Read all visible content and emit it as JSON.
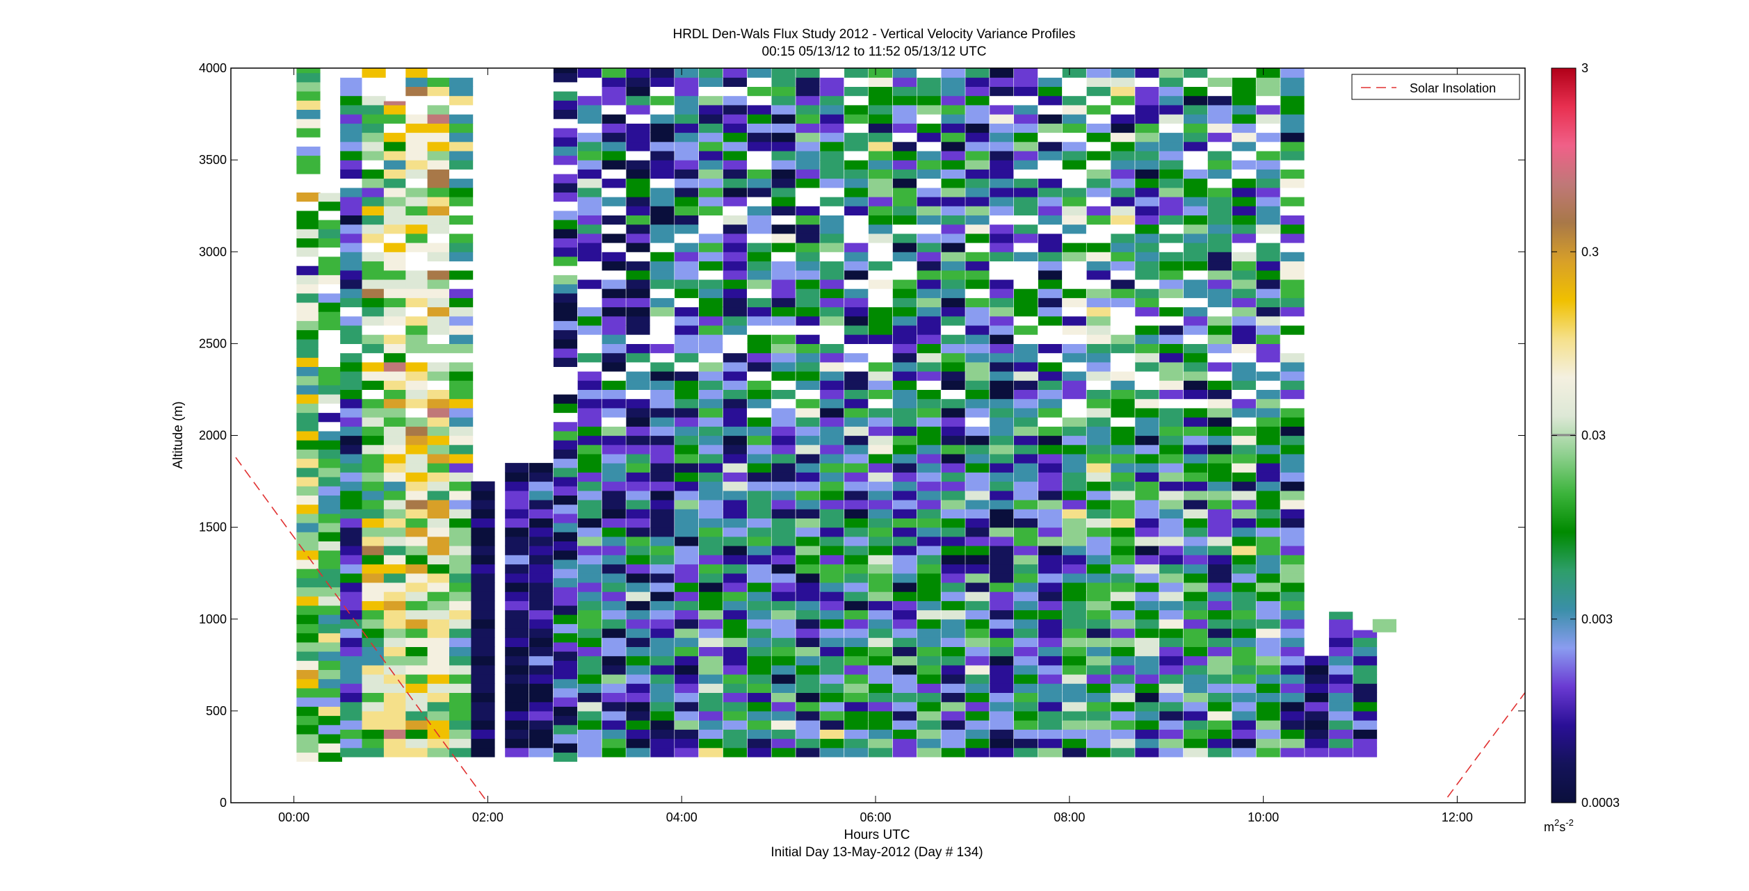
{
  "chart_data": {
    "type": "heatmap",
    "title": "HRDL Den-Wals Flux Study 2012 - Vertical Velocity Variance Profiles",
    "subtitle": "00:15 05/13/12 to 11:52 05/13/12  UTC",
    "xlabel": "Hours UTC",
    "xlabel2": "Initial Day 13-May-2012 (Day # 134)",
    "ylabel": "Altitude (m)",
    "xlim": [
      -0.65,
      12.7
    ],
    "ylim": [
      0,
      4000
    ],
    "x_ticks": [
      {
        "value": 0,
        "label": "00:00"
      },
      {
        "value": 2,
        "label": "02:00"
      },
      {
        "value": 4,
        "label": "04:00"
      },
      {
        "value": 6,
        "label": "06:00"
      },
      {
        "value": 8,
        "label": "08:00"
      },
      {
        "value": 10,
        "label": "10:00"
      },
      {
        "value": 12,
        "label": "12:00"
      }
    ],
    "y_ticks": [
      {
        "value": 0,
        "label": "0"
      },
      {
        "value": 500,
        "label": "500"
      },
      {
        "value": 1000,
        "label": "1000"
      },
      {
        "value": 1500,
        "label": "1500"
      },
      {
        "value": 2000,
        "label": "2000"
      },
      {
        "value": 2500,
        "label": "2500"
      },
      {
        "value": 3000,
        "label": "3000"
      },
      {
        "value": 3500,
        "label": "3500"
      },
      {
        "value": 4000,
        "label": "4000"
      }
    ],
    "colorbar": {
      "scale": "log",
      "min": 0.0003,
      "max": 3,
      "ticks": [
        {
          "value": 0.0003,
          "label": "0.0003"
        },
        {
          "value": 0.003,
          "label": "0.003"
        },
        {
          "value": 0.03,
          "label": "0.03"
        },
        {
          "value": 0.3,
          "label": "0.3"
        },
        {
          "value": 3,
          "label": "3"
        }
      ],
      "units_base": "m",
      "units_sup1": "2",
      "units_mid": "s",
      "units_sup2": "-2",
      "colors": [
        "#0a0f3c",
        "#14135a",
        "#2a0f96",
        "#6a3ad2",
        "#8a9cf0",
        "#3a8fa8",
        "#2e9e6a",
        "#008a00",
        "#3cb43c",
        "#8fd08f",
        "#dde8d6",
        "#f4f0e0",
        "#f5e08a",
        "#f0c000",
        "#d8a028",
        "#a87848",
        "#c07878",
        "#f06088",
        "#e83050",
        "#b00018"
      ]
    },
    "legend": {
      "label": "Solar Insolation",
      "placement": "top-right"
    },
    "columns": [
      {
        "x": 0.15,
        "top": 4000,
        "bottom": 225,
        "mean": -1.7,
        "spread": 1.0
      },
      {
        "x": 0.375,
        "top": 3320,
        "bottom": 225,
        "mean": -1.9,
        "spread": 0.9
      },
      {
        "x": 0.6,
        "top": 4000,
        "bottom": 250,
        "mean": -2.7,
        "spread": 0.9
      },
      {
        "x": 0.825,
        "top": 4000,
        "bottom": 250,
        "mean": -1.6,
        "spread": 1.0
      },
      {
        "x": 1.05,
        "top": 3820,
        "bottom": 250,
        "mean": -1.3,
        "spread": 0.9
      },
      {
        "x": 1.275,
        "top": 4000,
        "bottom": 250,
        "mean": -1.3,
        "spread": 0.9
      },
      {
        "x": 1.5,
        "top": 4000,
        "bottom": 250,
        "mean": -1.2,
        "spread": 0.9
      },
      {
        "x": 1.725,
        "top": 4000,
        "bottom": 250,
        "mean": -1.8,
        "spread": 1.0
      },
      {
        "x": 1.95,
        "top": 1750,
        "bottom": 250,
        "mean": -3.3,
        "spread": 0.3
      },
      {
        "x": 2.3,
        "top": 1850,
        "bottom": 250,
        "mean": -3.2,
        "spread": 0.5
      },
      {
        "x": 2.55,
        "top": 1850,
        "bottom": 250,
        "mean": -3.2,
        "spread": 0.5
      },
      {
        "x": 2.8,
        "top": 4000,
        "bottom": 225,
        "mean": -2.8,
        "spread": 1.0
      },
      {
        "x": 3.05,
        "top": 4000,
        "bottom": 250,
        "mean": -2.5,
        "spread": 0.9
      },
      {
        "x": 3.3,
        "top": 4000,
        "bottom": 250,
        "mean": -2.8,
        "spread": 1.0
      },
      {
        "x": 3.55,
        "top": 4000,
        "bottom": 250,
        "mean": -2.7,
        "spread": 1.0
      },
      {
        "x": 3.8,
        "top": 4000,
        "bottom": 250,
        "mean": -2.8,
        "spread": 1.0
      },
      {
        "x": 4.05,
        "top": 4000,
        "bottom": 250,
        "mean": -2.6,
        "spread": 1.0
      },
      {
        "x": 4.3,
        "top": 4000,
        "bottom": 250,
        "mean": -2.4,
        "spread": 1.0
      },
      {
        "x": 4.55,
        "top": 4000,
        "bottom": 250,
        "mean": -2.6,
        "spread": 1.0
      },
      {
        "x": 4.8,
        "top": 4000,
        "bottom": 250,
        "mean": -2.5,
        "spread": 1.0
      },
      {
        "x": 5.05,
        "top": 4000,
        "bottom": 250,
        "mean": -2.5,
        "spread": 1.0
      },
      {
        "x": 5.3,
        "top": 4000,
        "bottom": 250,
        "mean": -2.4,
        "spread": 1.0
      },
      {
        "x": 5.55,
        "top": 4000,
        "bottom": 250,
        "mean": -2.4,
        "spread": 1.0
      },
      {
        "x": 5.8,
        "top": 4000,
        "bottom": 250,
        "mean": -2.4,
        "spread": 1.0
      },
      {
        "x": 6.05,
        "top": 4000,
        "bottom": 250,
        "mean": -2.2,
        "spread": 1.0
      },
      {
        "x": 6.3,
        "top": 4000,
        "bottom": 250,
        "mean": -2.5,
        "spread": 1.0
      },
      {
        "x": 6.55,
        "top": 4000,
        "bottom": 250,
        "mean": -2.2,
        "spread": 1.0
      },
      {
        "x": 6.8,
        "top": 4000,
        "bottom": 250,
        "mean": -2.5,
        "spread": 1.0
      },
      {
        "x": 7.05,
        "top": 4000,
        "bottom": 250,
        "mean": -2.4,
        "spread": 1.0
      },
      {
        "x": 7.3,
        "top": 4000,
        "bottom": 250,
        "mean": -2.6,
        "spread": 1.0
      },
      {
        "x": 7.55,
        "top": 4000,
        "bottom": 250,
        "mean": -2.4,
        "spread": 1.0
      },
      {
        "x": 7.8,
        "top": 4000,
        "bottom": 250,
        "mean": -2.6,
        "spread": 1.0
      },
      {
        "x": 8.05,
        "top": 4000,
        "bottom": 250,
        "mean": -2.1,
        "spread": 1.0
      },
      {
        "x": 8.3,
        "top": 4000,
        "bottom": 250,
        "mean": -2.1,
        "spread": 1.0
      },
      {
        "x": 8.55,
        "top": 4000,
        "bottom": 250,
        "mean": -2.1,
        "spread": 1.0
      },
      {
        "x": 8.8,
        "top": 4000,
        "bottom": 250,
        "mean": -2.4,
        "spread": 1.0
      },
      {
        "x": 9.05,
        "top": 4000,
        "bottom": 250,
        "mean": -2.3,
        "spread": 1.0
      },
      {
        "x": 9.3,
        "top": 4000,
        "bottom": 250,
        "mean": -2.3,
        "spread": 1.0
      },
      {
        "x": 9.55,
        "top": 4000,
        "bottom": 250,
        "mean": -2.4,
        "spread": 1.0
      },
      {
        "x": 9.8,
        "top": 4000,
        "bottom": 250,
        "mean": -2.2,
        "spread": 1.0
      },
      {
        "x": 10.05,
        "top": 4000,
        "bottom": 250,
        "mean": -2.2,
        "spread": 1.0
      },
      {
        "x": 10.3,
        "top": 4000,
        "bottom": 250,
        "mean": -2.4,
        "spread": 1.0
      },
      {
        "x": 10.55,
        "top": 800,
        "bottom": 250,
        "mean": -3.2,
        "spread": 0.5
      },
      {
        "x": 10.8,
        "top": 1040,
        "bottom": 250,
        "mean": -2.6,
        "spread": 0.8
      },
      {
        "x": 11.05,
        "top": 940,
        "bottom": 250,
        "mean": -2.6,
        "spread": 0.8
      },
      {
        "x": 11.25,
        "top": 1000,
        "bottom": 930,
        "mean": -1.8,
        "spread": 0.6
      }
    ],
    "solar_insolation": [
      {
        "x": [
          -0.6,
          2.0
        ],
        "y": [
          1880,
          0
        ]
      },
      {
        "x": [
          11.9,
          12.7
        ],
        "y": [
          30,
          600
        ]
      }
    ]
  }
}
